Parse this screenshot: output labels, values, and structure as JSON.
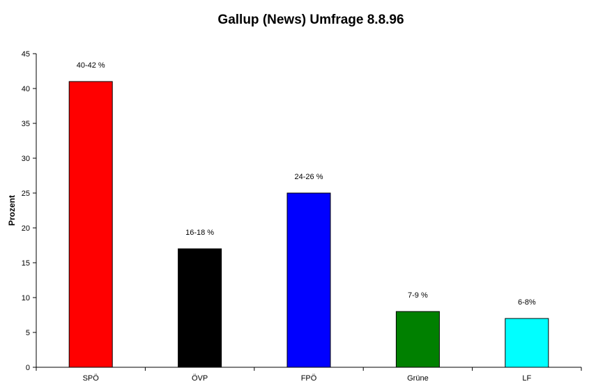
{
  "chart_data": {
    "type": "bar",
    "title": "Gallup (News) Umfrage 8.8.96",
    "xlabel": "",
    "ylabel": "Prozent",
    "ylim": [
      0,
      45
    ],
    "yticks": [
      0,
      5,
      10,
      15,
      20,
      25,
      30,
      35,
      40,
      45
    ],
    "grid": false,
    "legend": "none",
    "categories": [
      "SPÖ",
      "ÖVP",
      "FPÖ",
      "Grüne",
      "LF"
    ],
    "values": [
      41,
      17,
      25,
      8,
      7
    ],
    "data_labels": [
      "40-42 %",
      "16-18 %",
      "24-26 %",
      "7-9 %",
      "6-8%"
    ],
    "colors": [
      "#ff0000",
      "#000000",
      "#0000ff",
      "#008000",
      "#00ffff"
    ]
  }
}
